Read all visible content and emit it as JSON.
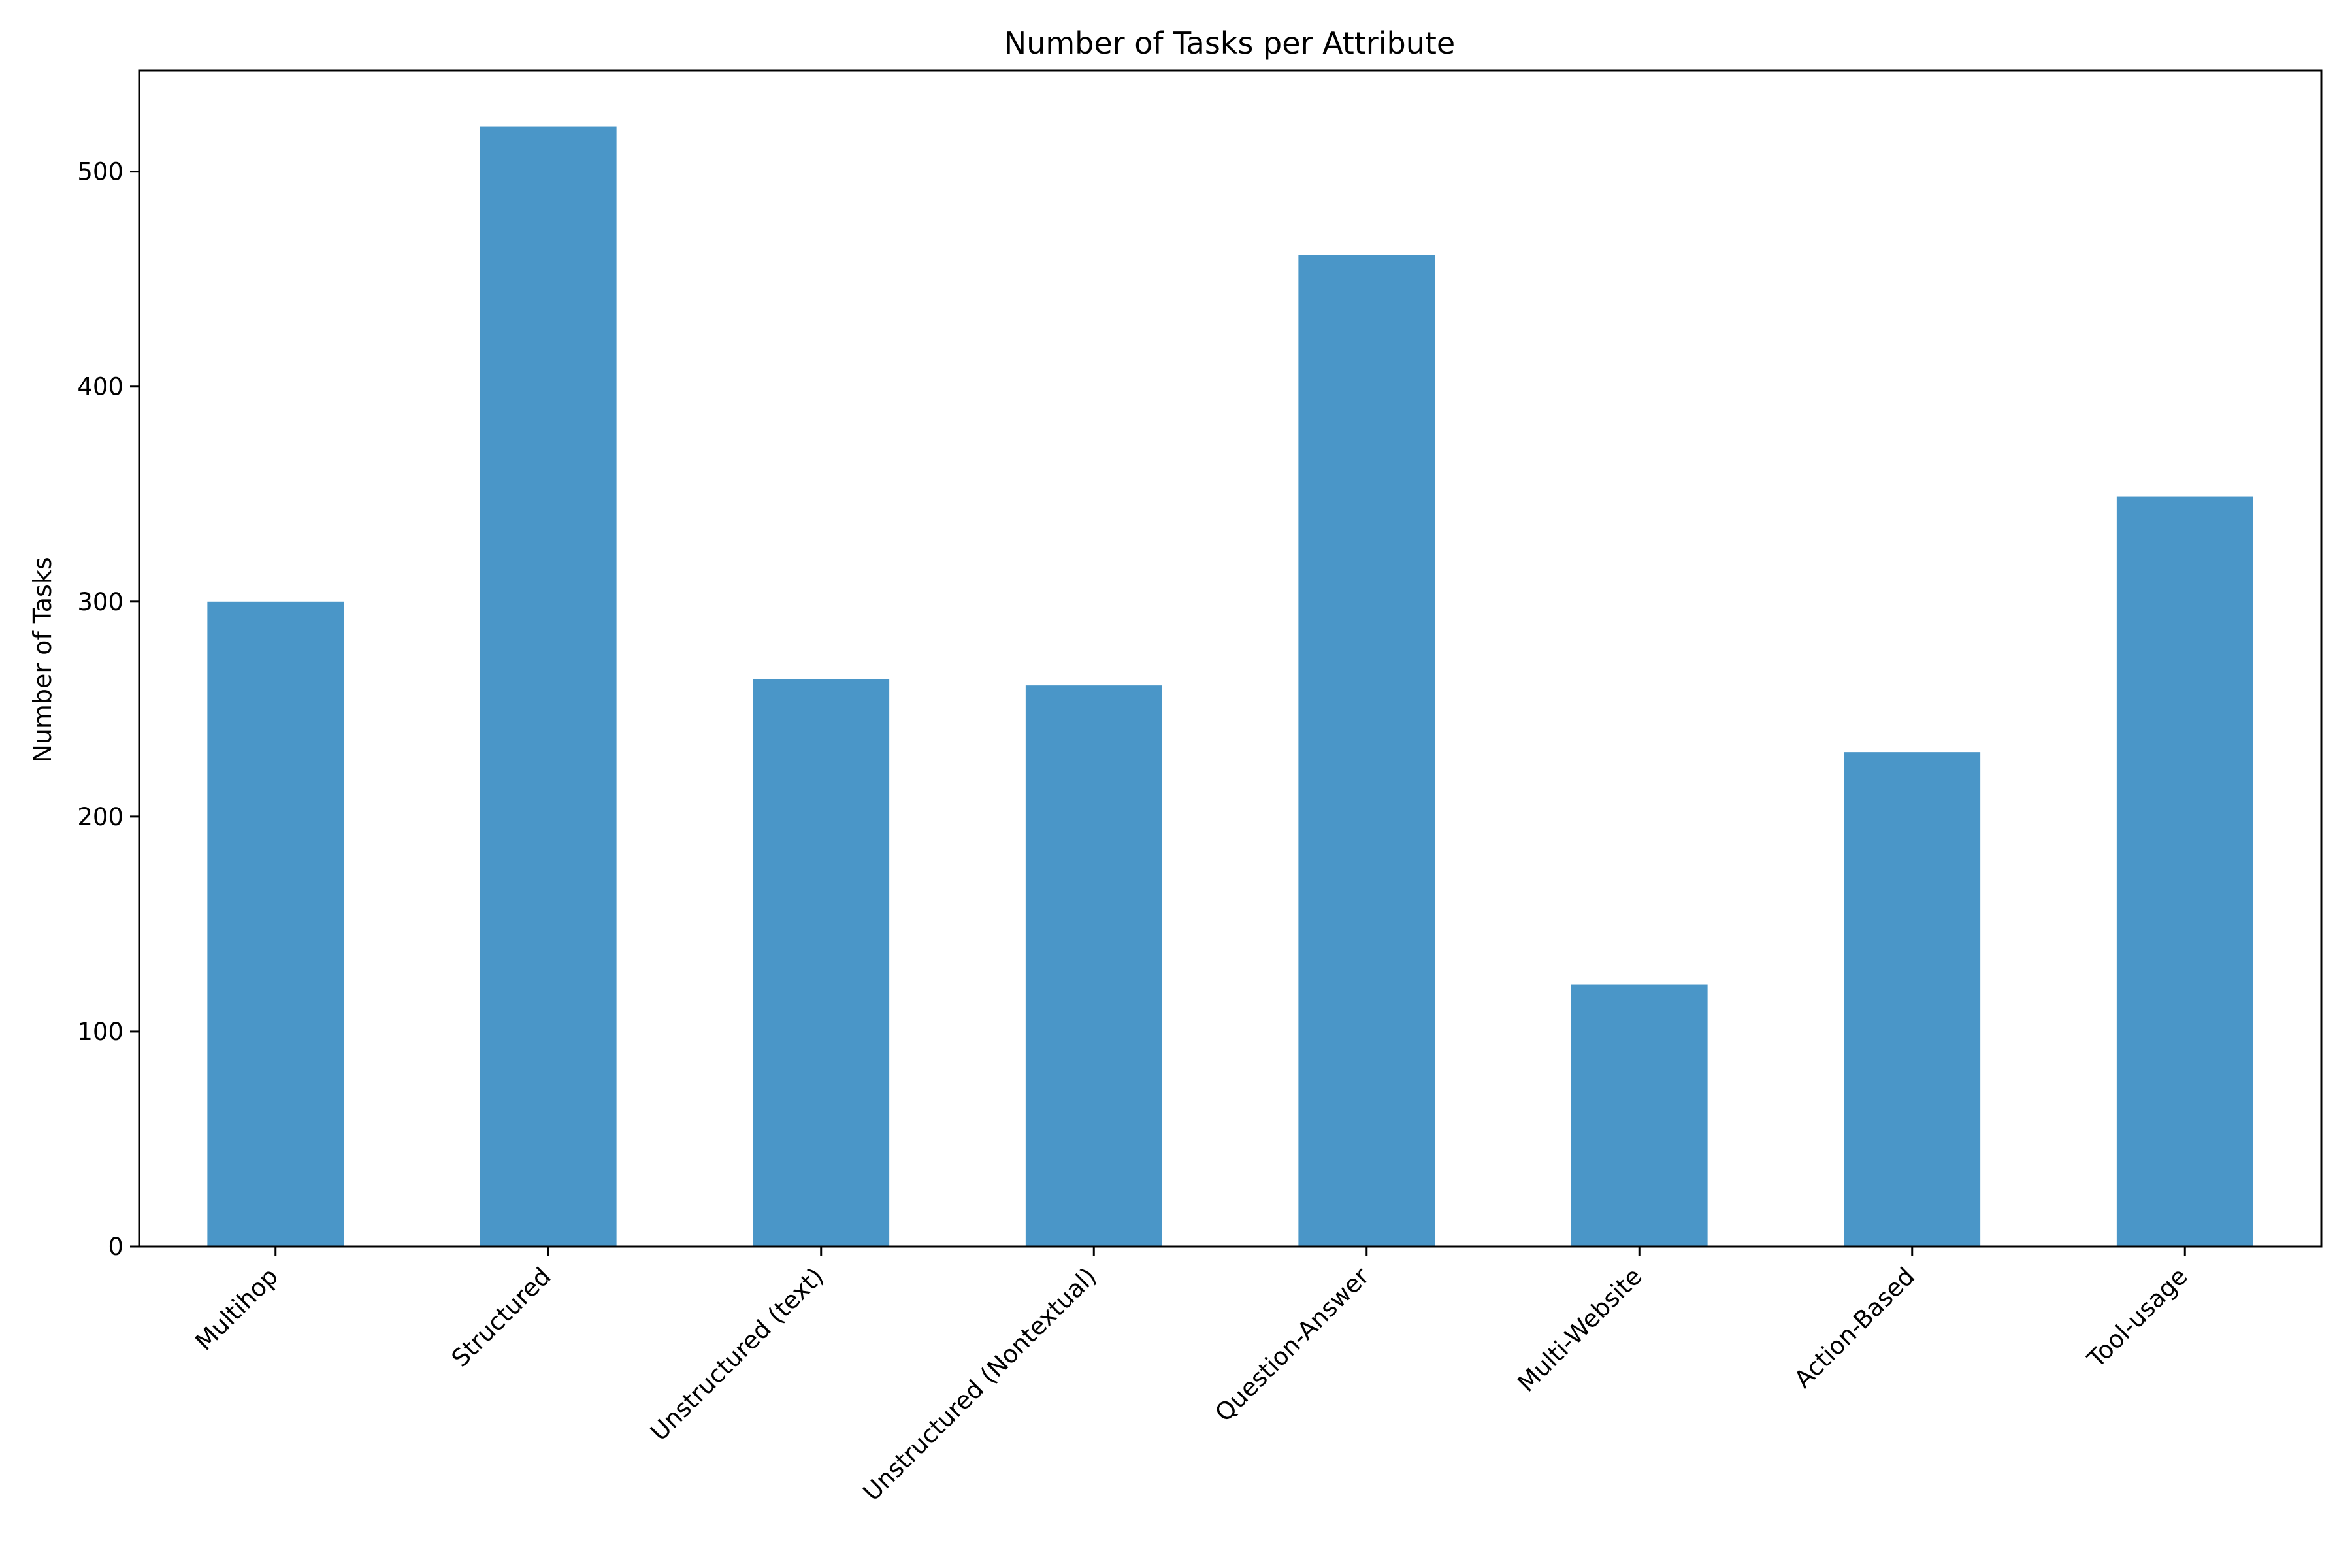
{
  "chart_data": {
    "type": "bar",
    "title": "Number of Tasks per Attribute",
    "xlabel": "",
    "ylabel": "Number of Tasks",
    "categories": [
      "Multihop",
      "Structured",
      "Unstructured (text)",
      "Unstructured (Nontextual)",
      "Question-Answer",
      "Multi-Website",
      "Action-Based",
      "Tool-usage"
    ],
    "values": [
      300,
      521,
      264,
      261,
      461,
      122,
      230,
      349
    ],
    "ylim": [
      0,
      547
    ],
    "yticks": [
      0,
      100,
      200,
      300,
      400,
      500
    ],
    "grid": false,
    "legend": "none",
    "bar_color": "#4a96c8"
  }
}
